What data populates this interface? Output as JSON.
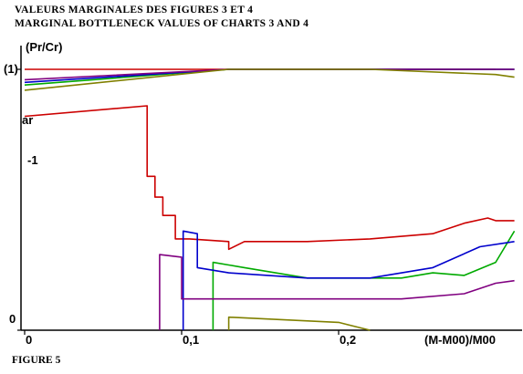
{
  "titles": {
    "line1": "VALEURS MARGINALES DES FIGURES 3 ET 4",
    "line2": "MARGINAL BOTTLENECK VALUES OF CHARTS 3 AND 4"
  },
  "caption": "FIGURE 5",
  "chart_data": {
    "type": "line",
    "ylabel": "(Pr/Cr)",
    "xlabel": "(M-M00)/M00",
    "xlim": [
      0,
      0.3
    ],
    "ylim": [
      0,
      1.1
    ],
    "x_tick_labels": [
      {
        "value": 0,
        "label": "0"
      },
      {
        "value": 0.1,
        "label": "0,1"
      },
      {
        "value": 0.2,
        "label": "0,2"
      }
    ],
    "y_tick_labels": [
      {
        "value": 1.0,
        "label": "(1)"
      },
      {
        "value": 0.0,
        "label": "0"
      }
    ],
    "y_side_labels": [
      {
        "value": 0.87,
        "label": "ar"
      },
      {
        "value": 0.77,
        "label": "-1"
      }
    ],
    "grid": false,
    "legend": "none",
    "series": [
      {
        "color": "#cc0000",
        "points": [
          [
            0,
            1.0
          ],
          [
            0.3,
            1.0
          ]
        ]
      },
      {
        "color": "#cc0000",
        "points": [
          [
            0,
            0.82
          ],
          [
            0.078,
            0.86
          ],
          [
            0.078,
            0.59
          ],
          [
            0.083,
            0.59
          ],
          [
            0.083,
            0.51
          ],
          [
            0.088,
            0.51
          ],
          [
            0.088,
            0.44
          ],
          [
            0.096,
            0.44
          ],
          [
            0.096,
            0.35
          ],
          [
            0.105,
            0.35
          ],
          [
            0.13,
            0.34
          ],
          [
            0.13,
            0.31
          ],
          [
            0.14,
            0.34
          ],
          [
            0.18,
            0.34
          ],
          [
            0.22,
            0.35
          ],
          [
            0.26,
            0.37
          ],
          [
            0.28,
            0.41
          ],
          [
            0.295,
            0.43
          ],
          [
            0.3,
            0.42
          ],
          [
            0.312,
            0.42
          ]
        ]
      },
      {
        "color": "#00aa00",
        "points": [
          [
            0,
            0.94
          ],
          [
            0.13,
            1.0
          ],
          [
            0.312,
            1.0
          ]
        ]
      },
      {
        "color": "#0000cc",
        "points": [
          [
            0,
            0.95
          ],
          [
            0.13,
            1.0
          ],
          [
            0.312,
            1.0
          ]
        ]
      },
      {
        "color": "#800080",
        "points": [
          [
            0,
            0.96
          ],
          [
            0.13,
            1.0
          ],
          [
            0.312,
            1.0
          ]
        ]
      },
      {
        "color": "#808000",
        "points": [
          [
            0,
            0.92
          ],
          [
            0.13,
            1.0
          ],
          [
            0.22,
            1.0
          ],
          [
            0.3,
            0.98
          ],
          [
            0.312,
            0.97
          ]
        ]
      },
      {
        "color": "#00aa00",
        "points": [
          [
            0.12,
            0.0
          ],
          [
            0.12,
            0.26
          ],
          [
            0.13,
            0.25
          ],
          [
            0.14,
            0.24
          ],
          [
            0.18,
            0.2
          ],
          [
            0.24,
            0.2
          ],
          [
            0.26,
            0.22
          ],
          [
            0.28,
            0.21
          ],
          [
            0.3,
            0.26
          ],
          [
            0.312,
            0.38
          ]
        ]
      },
      {
        "color": "#0000cc",
        "points": [
          [
            0.101,
            0.0
          ],
          [
            0.101,
            0.38
          ],
          [
            0.11,
            0.37
          ],
          [
            0.11,
            0.24
          ],
          [
            0.13,
            0.22
          ],
          [
            0.18,
            0.2
          ],
          [
            0.22,
            0.2
          ],
          [
            0.26,
            0.24
          ],
          [
            0.29,
            0.32
          ],
          [
            0.312,
            0.34
          ]
        ]
      },
      {
        "color": "#800080",
        "points": [
          [
            0.086,
            0.0
          ],
          [
            0.086,
            0.29
          ],
          [
            0.1,
            0.28
          ],
          [
            0.1,
            0.12
          ],
          [
            0.18,
            0.12
          ],
          [
            0.24,
            0.12
          ],
          [
            0.28,
            0.14
          ],
          [
            0.3,
            0.18
          ],
          [
            0.312,
            0.19
          ]
        ]
      },
      {
        "color": "#808000",
        "points": [
          [
            0.13,
            0.0
          ],
          [
            0.13,
            0.05
          ],
          [
            0.2,
            0.03
          ],
          [
            0.22,
            0.0
          ]
        ]
      }
    ]
  }
}
